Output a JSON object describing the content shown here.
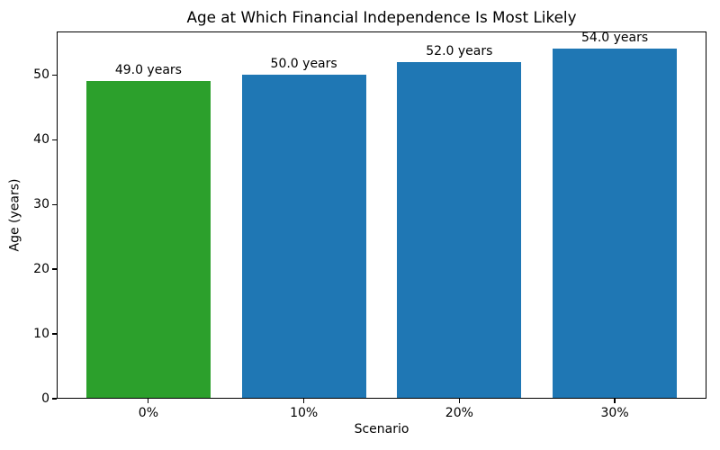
{
  "chart_data": {
    "type": "bar",
    "title": "Age at Which Financial Independence Is Most Likely",
    "xlabel": "Scenario",
    "ylabel": "Age (years)",
    "categories": [
      "0%",
      "10%",
      "20%",
      "30%"
    ],
    "values": [
      49.0,
      50.0,
      52.0,
      54.0
    ],
    "bar_labels": [
      "49.0 years",
      "50.0 years",
      "52.0 years",
      "54.0 years"
    ],
    "bar_colors": [
      "#2ca02c",
      "#1f77b4",
      "#1f77b4",
      "#1f77b4"
    ],
    "default_bar_color": "#1f77b4",
    "highlight_color": "#2ca02c",
    "ylim": [
      0,
      56.7
    ],
    "yticks": [
      0,
      10,
      20,
      30,
      40,
      50
    ],
    "bar_width_fraction": 0.8,
    "grid": false,
    "legend_position": "none",
    "spine_color": "#000000",
    "background_color": "#ffffff"
  }
}
